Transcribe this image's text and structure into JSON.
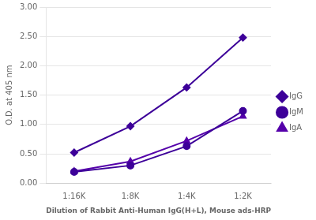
{
  "chart_data": {
    "type": "line",
    "xlabel": "Dilution of Rabbit Anti-Human IgG(H+L), Mouse ads-HRP",
    "ylabel": "O.D. at 405 nm",
    "categories": [
      "1:16K",
      "1:8K",
      "1:4K",
      "1:2K"
    ],
    "series": [
      {
        "name": "IgG",
        "color": "#3D0099",
        "marker": "diamond",
        "values": [
          0.52,
          0.97,
          1.63,
          2.48
        ]
      },
      {
        "name": "IgM",
        "color": "#3D0099",
        "marker": "circle",
        "values": [
          0.19,
          0.3,
          0.63,
          1.23
        ]
      },
      {
        "name": "IgA",
        "color": "#5500AA",
        "marker": "triangle",
        "values": [
          0.2,
          0.37,
          0.72,
          1.14
        ]
      }
    ],
    "ylim": [
      0.0,
      3.0
    ],
    "yticks": [
      {
        "value": 0,
        "label": "0.00"
      },
      {
        "value": 0.5,
        "label": "0.50"
      },
      {
        "value": 1,
        "label": "1.00"
      },
      {
        "value": 1.5,
        "label": "1.50"
      },
      {
        "value": 2,
        "label": "2.00"
      },
      {
        "value": 2.5,
        "label": "2.50"
      },
      {
        "value": 3,
        "label": "3.00"
      }
    ],
    "grid": true,
    "legend": "right"
  }
}
